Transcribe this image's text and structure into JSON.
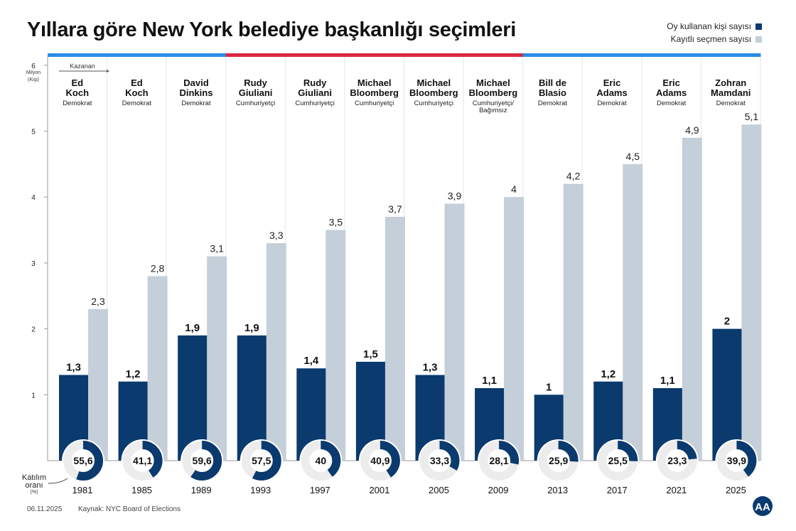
{
  "title": "Yıllara göre New York belediye başkanlığı seçimleri",
  "legend": [
    {
      "label": "Oy kullanan kişi sayısı",
      "color": "#0a3a6e"
    },
    {
      "label": "Kayıtlı seçmen sayısı",
      "color": "#c5cfd9"
    }
  ],
  "footer": {
    "date": "06.11.2025",
    "source": "Kaynak: NYC Board of Elections"
  },
  "axis": {
    "unit1": "Milyon",
    "unit2": "(Kişi)",
    "winner_label": "Kazanan",
    "turnout_label1": "Katılım",
    "turnout_label2": "oranı",
    "turnout_label3": "(%)"
  },
  "chart_data": {
    "type": "bar",
    "ylim": [
      0,
      6
    ],
    "yticks": [
      1,
      2,
      3,
      4,
      5,
      6
    ],
    "categories": [
      "1981",
      "1985",
      "1989",
      "1993",
      "1997",
      "2001",
      "2005",
      "2009",
      "2013",
      "2017",
      "2021",
      "2025"
    ],
    "winners": [
      [
        "Ed",
        "Koch",
        "Demokrat"
      ],
      [
        "Ed",
        "Koch",
        "Demokrat"
      ],
      [
        "David",
        "Dinkins",
        "Demokrat"
      ],
      [
        "Rudy",
        "Giuliani",
        "Cumhuriyetçi"
      ],
      [
        "Rudy",
        "Giuliani",
        "Cumhuriyetçi"
      ],
      [
        "Michael",
        "Bloomberg",
        "Cumhuriyetçi"
      ],
      [
        "Michael",
        "Bloomberg",
        "Cumhuriyetçi"
      ],
      [
        "Michael",
        "Bloomberg",
        "Cumhuriyetçi/",
        "Bağımsız"
      ],
      [
        "Bill de",
        "Blasio",
        "Demokrat"
      ],
      [
        "Eric",
        "Adams",
        "Demokrat"
      ],
      [
        "Eric",
        "Adams",
        "Demokrat"
      ],
      [
        "Zohran",
        "Mamdani",
        "Demokrat"
      ]
    ],
    "party_bar": [
      "#2a8be8",
      "#2a8be8",
      "#2a8be8",
      "#d92840",
      "#d92840",
      "#d92840",
      "#d92840",
      "#d92840",
      "#2a8be8",
      "#2a8be8",
      "#2a8be8",
      "#2a8be8"
    ],
    "series": [
      {
        "name": "Oy kullanan kişi sayısı",
        "color": "#0a3a6e",
        "values": [
          1.3,
          1.2,
          1.9,
          1.9,
          1.4,
          1.5,
          1.3,
          1.1,
          1,
          1.2,
          1.1,
          2
        ],
        "labels": [
          "1,3",
          "1,2",
          "1,9",
          "1,9",
          "1,4",
          "1,5",
          "1,3",
          "1,1",
          "1",
          "1,2",
          "1,1",
          "2"
        ]
      },
      {
        "name": "Kayıtlı seçmen sayısı",
        "color": "#c5cfd9",
        "values": [
          2.3,
          2.8,
          3.1,
          3.3,
          3.5,
          3.7,
          3.9,
          4,
          4.2,
          4.5,
          4.9,
          5.1
        ],
        "labels": [
          "2,3",
          "2,8",
          "3,1",
          "3,3",
          "3,5",
          "3,7",
          "3,9",
          "4",
          "4,2",
          "4,5",
          "4,9",
          "5,1"
        ]
      }
    ],
    "turnout": {
      "values": [
        55.6,
        41.1,
        59.6,
        57.5,
        40,
        40.9,
        33.3,
        28.1,
        25.9,
        25.5,
        23.3,
        39.9
      ],
      "labels": [
        "55,6",
        "41,1",
        "59,6",
        "57,5",
        "40",
        "40,9",
        "33,3",
        "28,1",
        "25,9",
        "25,5",
        "23,3",
        "39,9"
      ]
    }
  }
}
